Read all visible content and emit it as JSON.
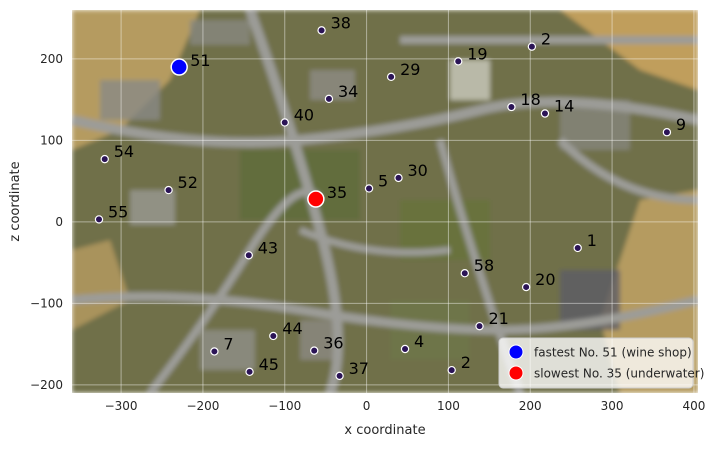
{
  "chart_data": {
    "type": "scatter",
    "xlabel": "x coordinate",
    "ylabel": "z coordinate",
    "xlim": [
      -360,
      405
    ],
    "ylim": [
      -210,
      260
    ],
    "x_ticks": [
      -300,
      -200,
      -100,
      0,
      100,
      200,
      300,
      400
    ],
    "y_ticks": [
      -200,
      -100,
      0,
      100,
      200
    ],
    "grid": true,
    "background": "blurred top-down town map",
    "legend_position": "bottom-right",
    "points": [
      {
        "label": "38",
        "x": -55,
        "y": 235
      },
      {
        "label": "2",
        "x": 202,
        "y": 215
      },
      {
        "label": "19",
        "x": 112,
        "y": 197
      },
      {
        "label": "29",
        "x": 30,
        "y": 178
      },
      {
        "label": "34",
        "x": -46,
        "y": 151
      },
      {
        "label": "18",
        "x": 177,
        "y": 141
      },
      {
        "label": "14",
        "x": 218,
        "y": 133
      },
      {
        "label": "40",
        "x": -100,
        "y": 122
      },
      {
        "label": "9",
        "x": 367,
        "y": 110
      },
      {
        "label": "54",
        "x": -320,
        "y": 77
      },
      {
        "label": "5",
        "x": 3,
        "y": 41
      },
      {
        "label": "30",
        "x": 39,
        "y": 54
      },
      {
        "label": "52",
        "x": -242,
        "y": 39
      },
      {
        "label": "55",
        "x": -327,
        "y": 3
      },
      {
        "label": "43",
        "x": -144,
        "y": -41
      },
      {
        "label": "1",
        "x": 258,
        "y": -32
      },
      {
        "label": "58",
        "x": 120,
        "y": -63
      },
      {
        "label": "20",
        "x": 195,
        "y": -80
      },
      {
        "label": "21",
        "x": 138,
        "y": -128
      },
      {
        "label": "44",
        "x": -114,
        "y": -140
      },
      {
        "label": "4",
        "x": 47,
        "y": -156
      },
      {
        "label": "36",
        "x": -64,
        "y": -158
      },
      {
        "label": "7",
        "x": -186,
        "y": -159
      },
      {
        "label": "2",
        "x": 104,
        "y": -182
      },
      {
        "label": "45",
        "x": -143,
        "y": -184
      },
      {
        "label": "37",
        "x": -33,
        "y": -189
      }
    ],
    "highlights": [
      {
        "label": "51",
        "x": -229,
        "y": 190,
        "color": "#0000ff",
        "legend": "fastest No. 51 (wine shop)"
      },
      {
        "label": "35",
        "x": -62,
        "y": 28,
        "color": "#ff0000",
        "legend": "slowest No. 35 (underwater)"
      }
    ]
  },
  "colors": {
    "point_fill": "#2b1456",
    "point_edge": "#ffffff",
    "grid": "#ffffff",
    "map_base": "#6f6f4a"
  }
}
